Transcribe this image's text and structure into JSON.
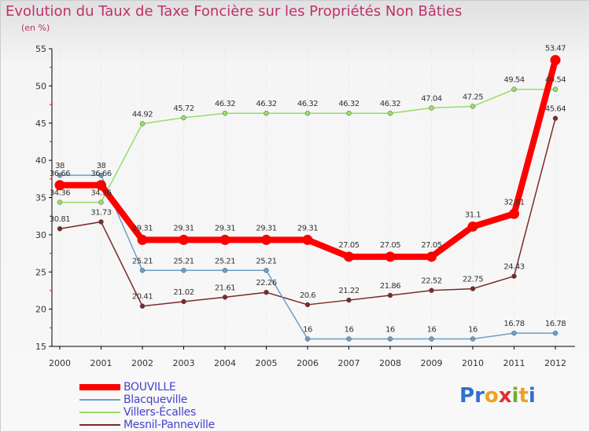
{
  "title": "Evolution du Taux de Taxe Foncière sur les Propriétés Non Bâties",
  "subtitle": "(en %)",
  "logo": {
    "letters": [
      "P",
      "r",
      "o",
      "x",
      "i",
      "t",
      "i"
    ],
    "colors": [
      "#2f6fd0",
      "#2f6fd0",
      "#f0a020",
      "#e03030",
      "#70b030",
      "#f0a020",
      "#2f6fd0"
    ]
  },
  "colors": {
    "bouville": "#ff0000",
    "blacqueville": "#6b9ec9",
    "villers": "#99dd66",
    "mesnil": "#7a2a2a",
    "axis": "#000000",
    "grid": "#dddddd",
    "tick_mark": "#ff0000"
  },
  "chart_data": {
    "type": "line",
    "title": "Evolution du Taux de Taxe Foncière sur les Propriétés Non Bâties",
    "ylabel": "(en %)",
    "xlabel": "",
    "ylim": [
      15,
      55
    ],
    "yticks": [
      15,
      20,
      25,
      30,
      35,
      40,
      45,
      50,
      55
    ],
    "grid": "vertical",
    "legend": "bottom-left",
    "x": [
      "2000",
      "2001",
      "2002",
      "2003",
      "2004",
      "2005",
      "2006",
      "2007",
      "2008",
      "2009",
      "2010",
      "2011",
      "2012"
    ],
    "series": [
      {
        "name": "BOUVILLE",
        "key": "bouville",
        "values": [
          36.66,
          36.66,
          29.31,
          29.31,
          29.31,
          29.31,
          29.31,
          27.05,
          27.05,
          27.05,
          31.1,
          32.81,
          53.47
        ],
        "labels": [
          "36.66",
          "36.66",
          "29.31",
          "29.31",
          "29.31",
          "29.31",
          "29.31",
          "27.05",
          "27.05",
          "27.05",
          "31.1",
          "32.81",
          "53.47"
        ]
      },
      {
        "name": "Blacqueville",
        "key": "blacqueville",
        "values": [
          38,
          38,
          25.21,
          25.21,
          25.21,
          25.21,
          16,
          16,
          16,
          16,
          16,
          16.78,
          16.78
        ],
        "labels": [
          "38",
          "38",
          "25.21",
          "25.21",
          "25.21",
          "25.21",
          "16",
          "16",
          "16",
          "16",
          "16",
          "16.78",
          "16.78"
        ]
      },
      {
        "name": "Villers-Écalles",
        "key": "villers",
        "values": [
          34.36,
          34.36,
          44.92,
          45.72,
          46.32,
          46.32,
          46.32,
          46.32,
          46.32,
          47.04,
          47.25,
          49.54,
          49.54
        ],
        "labels": [
          "34.36",
          "34.36",
          "44.92",
          "45.72",
          "46.32",
          "46.32",
          "46.32",
          "46.32",
          "46.32",
          "47.04",
          "47.25",
          "49.54",
          "49.54"
        ]
      },
      {
        "name": "Mesnil-Panneville",
        "key": "mesnil",
        "values": [
          30.81,
          31.73,
          20.41,
          21.02,
          21.61,
          22.26,
          20.6,
          21.22,
          21.86,
          22.52,
          22.75,
          24.43,
          45.64
        ],
        "labels": [
          "30.81",
          "31.73",
          "20.41",
          "21.02",
          "21.61",
          "22.26",
          "20.6",
          "21.22",
          "21.86",
          "22.52",
          "22.75",
          "24.43",
          "45.64"
        ]
      }
    ]
  }
}
